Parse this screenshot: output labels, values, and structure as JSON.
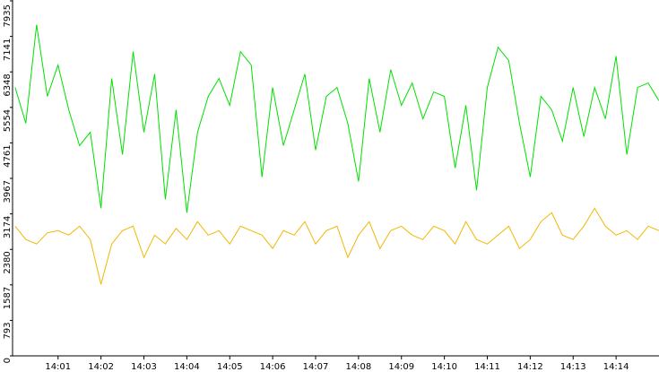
{
  "chart_data": {
    "type": "line",
    "x": [
      840,
      840.25,
      840.5,
      840.75,
      841,
      841.25,
      841.5,
      841.75,
      842,
      842.25,
      842.5,
      842.75,
      843,
      843.25,
      843.5,
      843.75,
      844,
      844.25,
      844.5,
      844.75,
      845,
      845.25,
      845.5,
      845.75,
      846,
      846.25,
      846.5,
      846.75,
      847,
      847.25,
      847.5,
      847.75,
      848,
      848.25,
      848.5,
      848.75,
      849,
      849.25,
      849.5,
      849.75,
      850,
      850.25,
      850.5,
      850.75,
      851,
      851.25,
      851.5,
      851.75,
      852,
      852.25,
      852.5,
      852.75,
      853,
      853.25,
      853.5,
      853.75,
      854,
      854.25,
      854.5,
      854.75,
      855
    ],
    "series": [
      {
        "color": "#00e000",
        "values": [
          6000,
          5200,
          7400,
          5800,
          6500,
          5500,
          4700,
          5000,
          3300,
          6200,
          4500,
          6800,
          5000,
          6300,
          3500,
          5500,
          3200,
          5000,
          5800,
          6200,
          5600,
          6800,
          6500,
          4000,
          6000,
          4700,
          5500,
          6300,
          4600,
          5800,
          6000,
          5200,
          3900,
          6200,
          5000,
          6400,
          5600,
          6100,
          5300,
          5900,
          5800,
          4200,
          5600,
          3700,
          6000,
          6900,
          6600,
          5200,
          4000,
          5800,
          5500,
          4800,
          6000,
          4900,
          6000,
          5300,
          6700,
          4500,
          6000,
          6100,
          5700
        ]
      },
      {
        "color": "#f0b800",
        "values": [
          2900,
          2600,
          2500,
          2750,
          2800,
          2700,
          2900,
          2600,
          1600,
          2500,
          2800,
          2900,
          2200,
          2700,
          2500,
          2850,
          2600,
          3000,
          2700,
          2800,
          2500,
          2900,
          2800,
          2700,
          2400,
          2800,
          2700,
          3000,
          2500,
          2800,
          2900,
          2200,
          2700,
          3000,
          2400,
          2800,
          2900,
          2700,
          2600,
          2900,
          2800,
          2500,
          3000,
          2600,
          2500,
          2700,
          2900,
          2400,
          2600,
          3000,
          3200,
          2700,
          2600,
          2900,
          3300,
          2900,
          2700,
          2800,
          2600,
          2900,
          2800
        ]
      }
    ],
    "xlim": [
      839.94,
      855.0
    ],
    "xticks": [
      {
        "value": 841,
        "label": "14:01"
      },
      {
        "value": 842,
        "label": "14:02"
      },
      {
        "value": 843,
        "label": "14:03"
      },
      {
        "value": 844,
        "label": "14:04"
      },
      {
        "value": 845,
        "label": "14:05"
      },
      {
        "value": 846,
        "label": "14:06"
      },
      {
        "value": 847,
        "label": "14:07"
      },
      {
        "value": 848,
        "label": "14:08"
      },
      {
        "value": 849,
        "label": "14:09"
      },
      {
        "value": 850,
        "label": "14:10"
      },
      {
        "value": 851,
        "label": "14:11"
      },
      {
        "value": 852,
        "label": "14:12"
      },
      {
        "value": 853,
        "label": "14:13"
      },
      {
        "value": 854,
        "label": "14:14"
      }
    ],
    "ylim": [
      0,
      7935
    ],
    "yticks": [
      0,
      793,
      1587,
      2380,
      3174,
      3967,
      4761,
      5554,
      6348,
      7141,
      7935
    ]
  }
}
